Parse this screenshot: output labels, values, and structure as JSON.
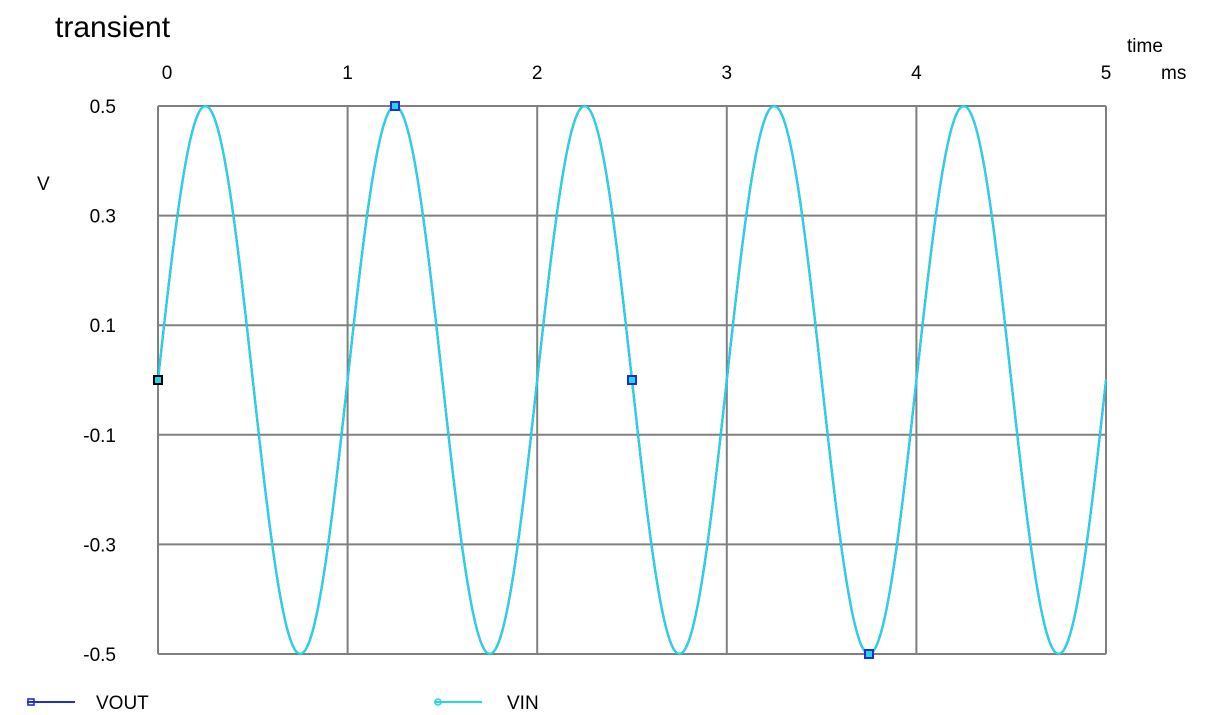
{
  "chart_data": {
    "type": "line",
    "title": "transient",
    "xlabel": "time",
    "xunit": "ms",
    "ylabel": "V",
    "xlim": [
      0,
      5
    ],
    "ylim": [
      -0.5,
      0.5
    ],
    "xticks": [
      0,
      1,
      2,
      3,
      4,
      5
    ],
    "xtick_labels": [
      "0",
      "1",
      "2",
      "3",
      "4",
      "5"
    ],
    "yticks": [
      0.5,
      0.3,
      0.1,
      -0.1,
      -0.3,
      -0.5
    ],
    "ytick_labels": [
      "0.5",
      "0.3",
      "0.1",
      "-0.1",
      "-0.3",
      "-0.5"
    ],
    "grid": true,
    "legend_position": "bottom",
    "series": [
      {
        "name": "VOUT",
        "color": "#1f2fd6",
        "marker": "square",
        "function": "0.5*sin(2*pi*1*t)",
        "amplitude": 0.5,
        "frequency_khz": 1,
        "markers_x": [
          0,
          1.25,
          2.5,
          3.75
        ]
      },
      {
        "name": "VIN",
        "color": "#22d8e6",
        "marker": "circle",
        "function": "0.5*sin(2*pi*1*t)",
        "amplitude": 0.5,
        "frequency_khz": 1,
        "markers_x": [
          0,
          1.25,
          2.5,
          3.75
        ]
      }
    ]
  }
}
